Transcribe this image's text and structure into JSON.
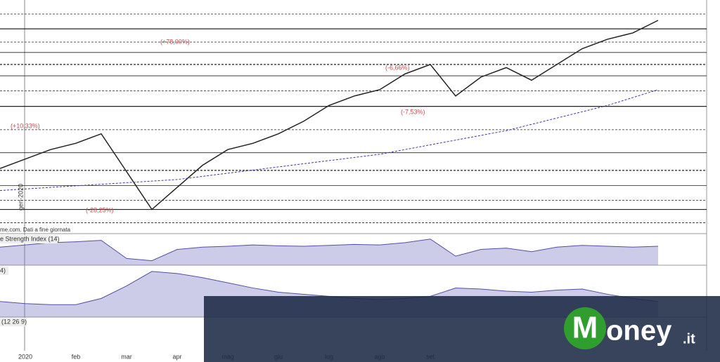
{
  "chart_data": [
    {
      "type": "line",
      "categories": [
        null,
        "2020",
        null,
        "feb",
        null,
        "mar",
        null,
        "apr",
        null,
        "mag",
        null,
        "giu",
        null,
        "lug",
        null,
        "ago",
        null,
        "set",
        null,
        null,
        null,
        null,
        null,
        null,
        null,
        null,
        null
      ],
      "ylim": [
        6.5,
        13.4
      ],
      "series": [
        {
          "color": "#222222",
          "values": [
            8.5,
            8.8,
            9.1,
            9.3,
            9.6,
            8.4,
            7.2,
            7.9,
            8.6,
            9.1,
            9.3,
            9.6,
            10.0,
            10.5,
            10.8,
            11.0,
            11.5,
            11.8,
            10.8,
            11.4,
            11.7,
            11.3,
            11.8,
            12.3,
            12.6,
            12.8,
            13.2
          ]
        },
        {
          "color": "#3a3aa8",
          "values": [
            7.8,
            7.85,
            7.9,
            7.95,
            8.0,
            8.05,
            8.1,
            8.15,
            8.25,
            8.35,
            8.45,
            8.55,
            8.65,
            8.75,
            8.85,
            8.95,
            9.1,
            9.25,
            9.4,
            9.55,
            9.7,
            9.9,
            10.1,
            10.3,
            10.5,
            10.75,
            11.0
          ]
        }
      ],
      "levels": [
        13.4,
        12.93,
        12.51,
        12.18,
        11.8,
        11.44,
        10.96,
        10.47,
        9.73,
        9.0,
        8.44,
        7.96,
        7.49,
        7.2,
        6.78
      ],
      "annotations": [
        "(+78,00%)",
        "(+10,33%)",
        "(-28,25%)",
        "(-6,66%)",
        "(-7,53%)",
        "gen-2020"
      ],
      "source": "me.com. Dati a fine giornata"
    },
    {
      "type": "area",
      "title": "e Strength Index (14)",
      "ylim": [
        20,
        90
      ],
      "values": [
        60,
        65,
        70,
        72,
        75,
        35,
        30,
        55,
        60,
        62,
        65,
        63,
        62,
        64,
        66,
        65,
        70,
        78,
        40,
        55,
        58,
        50,
        60,
        64,
        62,
        60,
        62
      ]
    },
    {
      "type": "area",
      "title": "4)",
      "ylim": [
        0,
        50
      ],
      "values": [
        15,
        13,
        12,
        12,
        18,
        30,
        44,
        42,
        38,
        33,
        28,
        24,
        22,
        20,
        18,
        17,
        18,
        20,
        28,
        27,
        25,
        24,
        26,
        27,
        22,
        18,
        15
      ]
    },
    {
      "type": "macd",
      "title": "(12 26 9)"
    }
  ],
  "brand": [
    "M",
    "oney",
    ".it"
  ]
}
